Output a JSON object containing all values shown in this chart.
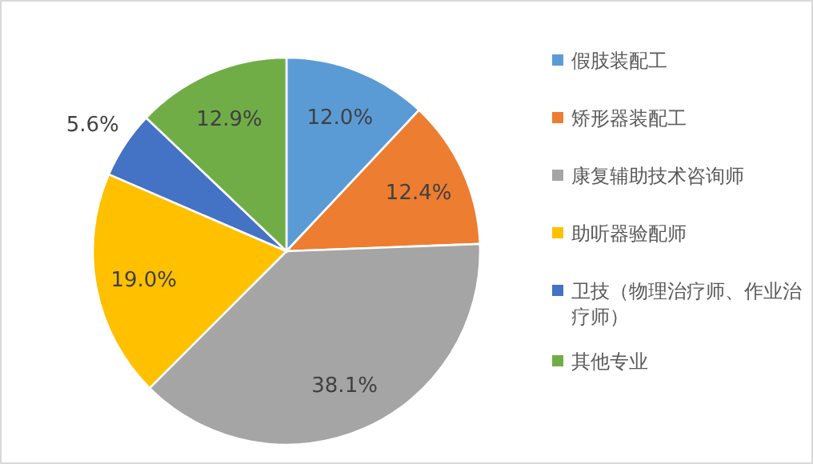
{
  "chart_data": {
    "type": "pie",
    "categories": [
      "假肢装配工",
      "矫形器装配工",
      "康复辅助技术咨询师",
      "助听器验配师",
      "卫技（物理治疗师、作业治疗师）",
      "其他专业"
    ],
    "values": [
      12.0,
      12.4,
      38.1,
      19.0,
      5.6,
      12.9
    ],
    "value_labels": [
      "12.0%",
      "12.4%",
      "38.1%",
      "19.0%",
      "5.6%",
      "12.9%"
    ],
    "colors": [
      "#5b9bd5",
      "#ed7d31",
      "#a5a5a5",
      "#ffc000",
      "#4472c4",
      "#70ad47"
    ],
    "legend": "right"
  }
}
